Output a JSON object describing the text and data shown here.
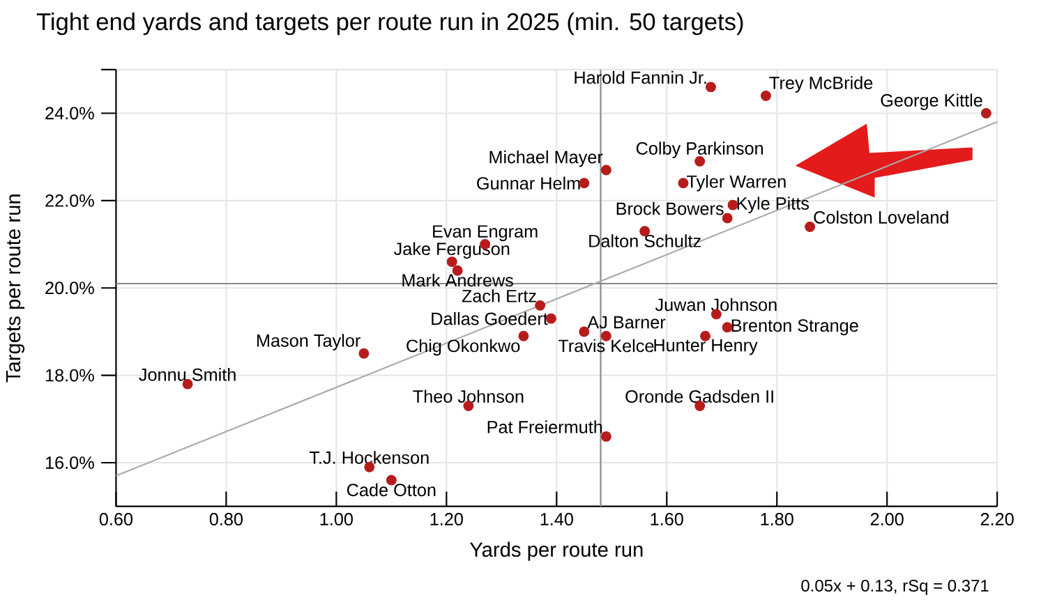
{
  "chart_data": {
    "type": "scatter",
    "title": "Tight end yards and targets per route run in 2025 (min. 50 targets)",
    "xlabel": "Yards per route run",
    "ylabel": "Targets per route run",
    "xlim": [
      0.6,
      2.2
    ],
    "ylim": [
      15,
      25
    ],
    "xticks": [
      {
        "value": 0.6,
        "label": "0.60"
      },
      {
        "value": 0.8,
        "label": "0.80"
      },
      {
        "value": 1.0,
        "label": "1.00"
      },
      {
        "value": 1.2,
        "label": "1.20"
      },
      {
        "value": 1.4,
        "label": "1.40"
      },
      {
        "value": 1.6,
        "label": "1.60"
      },
      {
        "value": 1.8,
        "label": "1.80"
      },
      {
        "value": 2.0,
        "label": "2.00"
      },
      {
        "value": 2.2,
        "label": "2.20"
      }
    ],
    "yticks": [
      {
        "value": 16,
        "label": "16.0%"
      },
      {
        "value": 18,
        "label": "18.0%"
      },
      {
        "value": 20,
        "label": "20.0%"
      },
      {
        "value": 22,
        "label": "22.0%"
      },
      {
        "value": 24,
        "label": "24.0%"
      },
      {
        "value": 25,
        "label": null
      }
    ],
    "grid": true,
    "series": [
      {
        "marker": "circle",
        "color": "#b71c1c",
        "x": [
          2.18,
          1.68,
          1.78,
          1.49,
          1.45,
          1.66,
          1.63,
          1.72,
          1.71,
          1.86,
          1.56,
          1.27,
          1.21,
          1.22,
          1.37,
          1.39,
          1.45,
          1.49,
          1.34,
          1.05,
          0.73,
          1.24,
          1.49,
          1.69,
          1.71,
          1.67,
          1.66,
          1.06,
          1.1
        ],
        "values": [
          24.0,
          24.6,
          24.4,
          22.7,
          22.4,
          22.9,
          22.4,
          21.9,
          21.6,
          21.4,
          21.3,
          21.0,
          20.6,
          20.4,
          19.6,
          19.3,
          19.0,
          18.9,
          18.9,
          18.5,
          17.8,
          17.3,
          16.6,
          19.4,
          19.1,
          18.9,
          17.3,
          15.9,
          15.6
        ]
      },
      {
        "type": "line",
        "marker": "none",
        "color": "#aaaaaa",
        "x": [
          0.6,
          2.2
        ],
        "values": [
          15.7,
          23.8
        ]
      }
    ],
    "ref_lines": [
      {
        "axis": "x",
        "value": 1.48,
        "color": "#888888"
      },
      {
        "axis": "y",
        "value": 20.1,
        "color": "#888888"
      }
    ],
    "annotations": [
      {
        "text": "George Kittle",
        "x": 2.18,
        "y": 24.0
      },
      {
        "text": "Harold Fannin Jr.",
        "x": 1.68,
        "y": 24.6
      },
      {
        "text": "Trey McBride",
        "x": 1.78,
        "y": 24.4
      },
      {
        "text": "Michael Mayer",
        "x": 1.49,
        "y": 22.7
      },
      {
        "text": "Gunnar Helm",
        "x": 1.45,
        "y": 22.4
      },
      {
        "text": "Colby Parkinson",
        "x": 1.66,
        "y": 22.9
      },
      {
        "text": "Tyler Warren",
        "x": 1.63,
        "y": 22.4
      },
      {
        "text": "Kyle Pitts",
        "x": 1.72,
        "y": 21.9
      },
      {
        "text": "Brock Bowers",
        "x": 1.71,
        "y": 21.6
      },
      {
        "text": "Colston Loveland",
        "x": 1.86,
        "y": 21.4
      },
      {
        "text": "Dalton Schultz",
        "x": 1.56,
        "y": 21.3
      },
      {
        "text": "Evan Engram",
        "x": 1.27,
        "y": 21.0
      },
      {
        "text": "Jake Ferguson",
        "x": 1.21,
        "y": 20.6
      },
      {
        "text": "Mark Andrews",
        "x": 1.22,
        "y": 20.4
      },
      {
        "text": "Zach Ertz",
        "x": 1.37,
        "y": 19.6
      },
      {
        "text": "Dallas Goedert",
        "x": 1.39,
        "y": 19.3
      },
      {
        "text": "AJ Barner",
        "x": 1.45,
        "y": 19.0
      },
      {
        "text": "Travis Kelce",
        "x": 1.49,
        "y": 18.9
      },
      {
        "text": "Chig Okonkwo",
        "x": 1.34,
        "y": 18.9
      },
      {
        "text": "Mason Taylor",
        "x": 1.05,
        "y": 18.5
      },
      {
        "text": "Jonnu Smith",
        "x": 0.73,
        "y": 17.8
      },
      {
        "text": "Theo Johnson",
        "x": 1.24,
        "y": 17.3
      },
      {
        "text": "Pat Freiermuth",
        "x": 1.49,
        "y": 16.6
      },
      {
        "text": "Juwan Johnson",
        "x": 1.69,
        "y": 19.4
      },
      {
        "text": "Brenton Strange",
        "x": 1.71,
        "y": 19.1
      },
      {
        "text": "Hunter Henry",
        "x": 1.67,
        "y": 18.9
      },
      {
        "text": "Oronde Gadsden II",
        "x": 1.66,
        "y": 17.3
      },
      {
        "text": "T.J. Hockenson",
        "x": 1.06,
        "y": 15.9
      },
      {
        "text": "Cade Otton",
        "x": 1.1,
        "y": 15.6
      },
      "0.05x + 0.13, rSq = 0.371"
    ]
  }
}
